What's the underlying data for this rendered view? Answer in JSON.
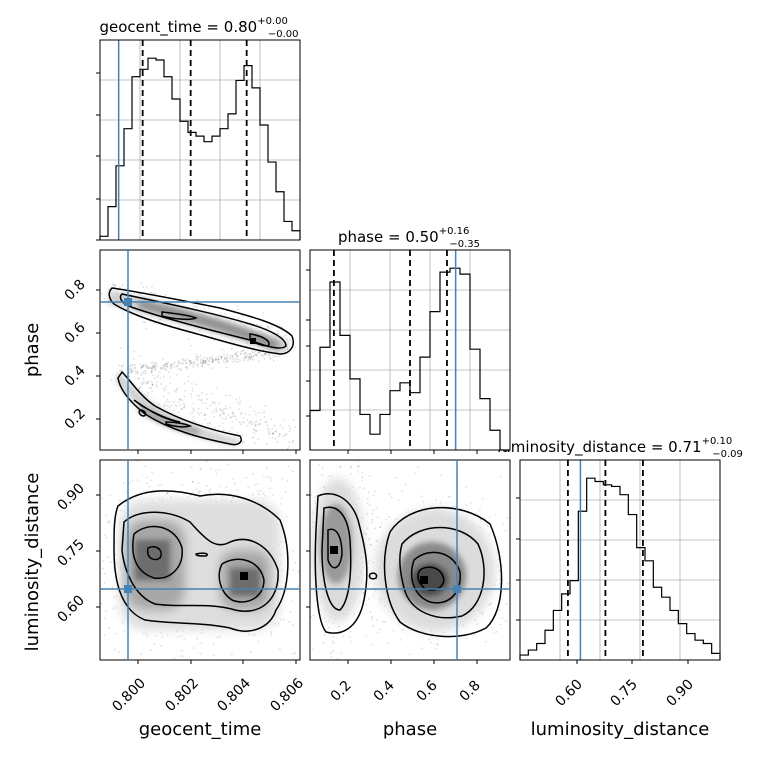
{
  "chart_data": {
    "type": "corner",
    "parameters": [
      "geocent_time",
      "phase",
      "luminosity_distance"
    ],
    "titles": [
      {
        "param": "geocent_time",
        "prefix": "geocent_time = ",
        "median": "0.80",
        "plus": "+0.00",
        "minus": "−0.00"
      },
      {
        "param": "phase",
        "prefix": "phase = ",
        "median": "0.50",
        "plus": "+0.16",
        "minus": "−0.35"
      },
      {
        "param": "luminosity_distance",
        "prefix": "luminosity_distance = ",
        "median": "0.71",
        "plus": "+0.10",
        "minus": "−0.09"
      }
    ],
    "axis_labels": {
      "geocent_time": "geocent_time",
      "phase": "phase",
      "luminosity_distance": "luminosity_distance"
    },
    "ranges": {
      "geocent_time": [
        0.7987,
        0.8062
      ],
      "phase": [
        0.03,
        0.95
      ],
      "luminosity_distance": [
        0.505,
        0.985
      ]
    },
    "ticks": {
      "geocent_time": [
        "0.800",
        "0.802",
        "0.804",
        "0.806"
      ],
      "phase": [
        "0.2",
        "0.4",
        "0.6",
        "0.8"
      ],
      "luminosity_distance": [
        "0.60",
        "0.75",
        "0.90"
      ]
    },
    "truths": {
      "geocent_time": 0.7994,
      "phase": 0.7,
      "luminosity_distance": 0.65
    },
    "quantiles": {
      "geocent_time": [
        0.8003,
        0.8021,
        0.8042
      ],
      "phase": [
        0.14,
        0.49,
        0.66
      ],
      "luminosity_distance": [
        0.62,
        0.71,
        0.8
      ]
    },
    "histograms": {
      "geocent_time": [
        2,
        18,
        40,
        60,
        88,
        92,
        98,
        97,
        88,
        76,
        64,
        58,
        56,
        53,
        56,
        60,
        68,
        86,
        94,
        82,
        62,
        42,
        26,
        10,
        5
      ],
      "phase": [
        20,
        52,
        85,
        58,
        36,
        18,
        8,
        18,
        30,
        34,
        29,
        47,
        70,
        90,
        92,
        89,
        51,
        26,
        10,
        0
      ],
      "luminosity_distance": [
        3,
        6,
        10,
        18,
        30,
        40,
        48,
        90,
        110,
        108,
        106,
        105,
        100,
        88,
        68,
        60,
        44,
        38,
        30,
        22,
        16,
        12,
        10,
        4
      ]
    },
    "true_color": "#4682b4",
    "line_color": "#000000",
    "grid": true
  }
}
